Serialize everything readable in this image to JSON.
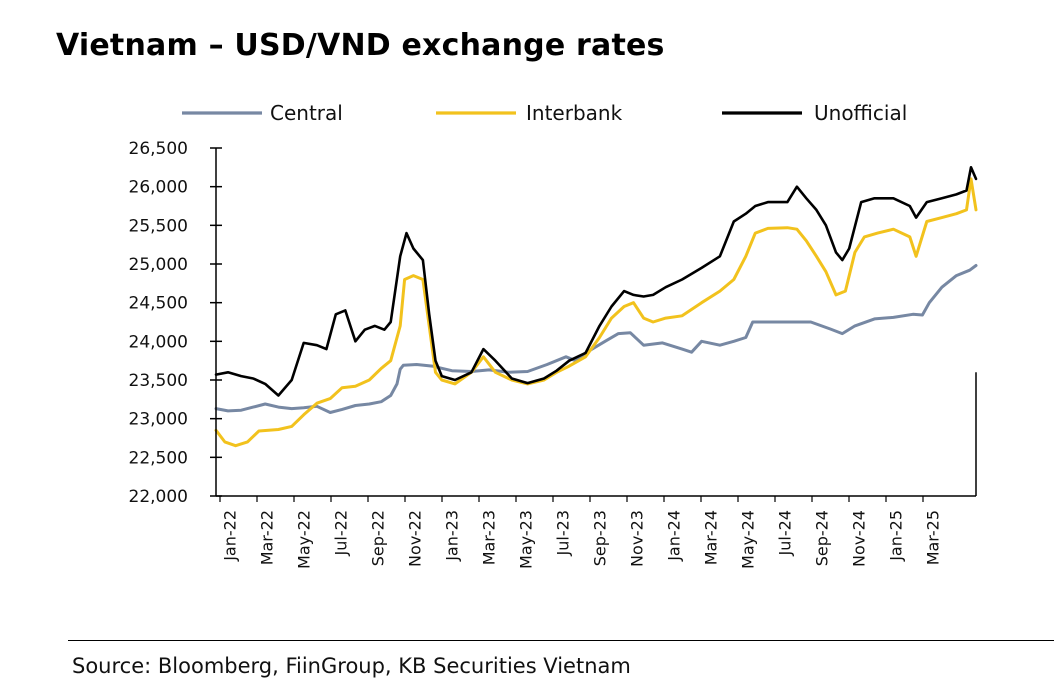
{
  "title": "Vietnam – USD/VND exchange rates",
  "source": "Source: Bloomberg, FiinGroup, KB Securities Vietnam",
  "chart_data": {
    "type": "line",
    "title": "Vietnam – USD/VND exchange rates",
    "xlabel": "",
    "ylabel": "",
    "ylim": [
      22000,
      26500
    ],
    "yticks": [
      22000,
      22500,
      23000,
      23500,
      24000,
      24500,
      25000,
      25500,
      26000,
      26500
    ],
    "ytick_labels": [
      "22,000",
      "22,500",
      "23,000",
      "23,500",
      "24,000",
      "24,500",
      "25,000",
      "25,500",
      "26,000",
      "26,500"
    ],
    "xticks": [
      "Jan-22",
      "Mar-22",
      "May-22",
      "Jul-22",
      "Sep-22",
      "Nov-22",
      "Jan-23",
      "Mar-23",
      "May-23",
      "Jul-23",
      "Sep-23",
      "Nov-23",
      "Jan-24",
      "Mar-24",
      "May-24",
      "Jul-24",
      "Sep-24",
      "Nov-24",
      "Jan-25",
      "Mar-25"
    ],
    "x_range": [
      "2022-01-01",
      "2025-04-20"
    ],
    "grid": false,
    "legend": "top",
    "series": [
      {
        "name": "Central",
        "color": "#7788A3",
        "points": [
          [
            "2022-01-01",
            23130
          ],
          [
            "2022-01-20",
            23100
          ],
          [
            "2022-02-10",
            23110
          ],
          [
            "2022-03-01",
            23150
          ],
          [
            "2022-03-20",
            23190
          ],
          [
            "2022-04-10",
            23150
          ],
          [
            "2022-05-01",
            23130
          ],
          [
            "2022-05-20",
            23140
          ],
          [
            "2022-06-10",
            23160
          ],
          [
            "2022-07-01",
            23080
          ],
          [
            "2022-07-20",
            23120
          ],
          [
            "2022-08-10",
            23170
          ],
          [
            "2022-09-01",
            23190
          ],
          [
            "2022-09-20",
            23220
          ],
          [
            "2022-10-05",
            23300
          ],
          [
            "2022-10-15",
            23450
          ],
          [
            "2022-10-20",
            23640
          ],
          [
            "2022-10-25",
            23690
          ],
          [
            "2022-11-15",
            23700
          ],
          [
            "2022-12-10",
            23680
          ],
          [
            "2023-01-10",
            23620
          ],
          [
            "2023-02-10",
            23610
          ],
          [
            "2023-03-10",
            23630
          ],
          [
            "2023-04-10",
            23600
          ],
          [
            "2023-05-10",
            23610
          ],
          [
            "2023-06-10",
            23700
          ],
          [
            "2023-07-10",
            23800
          ],
          [
            "2023-07-25",
            23750
          ],
          [
            "2023-08-10",
            23850
          ],
          [
            "2023-09-10",
            24000
          ],
          [
            "2023-10-01",
            24100
          ],
          [
            "2023-10-20",
            24110
          ],
          [
            "2023-11-10",
            23950
          ],
          [
            "2023-12-10",
            23980
          ],
          [
            "2024-01-10",
            23900
          ],
          [
            "2024-01-25",
            23860
          ],
          [
            "2024-02-10",
            24000
          ],
          [
            "2024-03-10",
            23950
          ],
          [
            "2024-04-01",
            24000
          ],
          [
            "2024-04-20",
            24050
          ],
          [
            "2024-05-01",
            24250
          ],
          [
            "2024-06-01",
            24250
          ],
          [
            "2024-07-01",
            24250
          ],
          [
            "2024-08-01",
            24250
          ],
          [
            "2024-09-01",
            24160
          ],
          [
            "2024-09-20",
            24100
          ],
          [
            "2024-10-10",
            24200
          ],
          [
            "2024-11-10",
            24290
          ],
          [
            "2024-12-10",
            24310
          ],
          [
            "2025-01-10",
            24350
          ],
          [
            "2025-01-25",
            24340
          ],
          [
            "2025-02-05",
            24500
          ],
          [
            "2025-02-25",
            24700
          ],
          [
            "2025-03-20",
            24850
          ],
          [
            "2025-04-10",
            24920
          ],
          [
            "2025-04-20",
            24980
          ]
        ]
      },
      {
        "name": "Interbank",
        "color": "#F2C21D",
        "points": [
          [
            "2022-01-01",
            22850
          ],
          [
            "2022-01-15",
            22700
          ],
          [
            "2022-02-01",
            22650
          ],
          [
            "2022-02-20",
            22700
          ],
          [
            "2022-03-10",
            22840
          ],
          [
            "2022-04-10",
            22860
          ],
          [
            "2022-05-01",
            22900
          ],
          [
            "2022-05-20",
            23050
          ],
          [
            "2022-06-10",
            23200
          ],
          [
            "2022-07-01",
            23260
          ],
          [
            "2022-07-20",
            23400
          ],
          [
            "2022-08-10",
            23420
          ],
          [
            "2022-09-01",
            23500
          ],
          [
            "2022-09-20",
            23650
          ],
          [
            "2022-10-05",
            23750
          ],
          [
            "2022-10-20",
            24200
          ],
          [
            "2022-10-27",
            24800
          ],
          [
            "2022-11-10",
            24850
          ],
          [
            "2022-11-25",
            24800
          ],
          [
            "2022-12-05",
            24200
          ],
          [
            "2022-12-15",
            23600
          ],
          [
            "2022-12-25",
            23500
          ],
          [
            "2023-01-15",
            23450
          ],
          [
            "2023-02-10",
            23600
          ],
          [
            "2023-03-01",
            23800
          ],
          [
            "2023-03-20",
            23600
          ],
          [
            "2023-04-15",
            23500
          ],
          [
            "2023-05-10",
            23450
          ],
          [
            "2023-06-05",
            23500
          ],
          [
            "2023-06-25",
            23600
          ],
          [
            "2023-07-15",
            23680
          ],
          [
            "2023-08-10",
            23800
          ],
          [
            "2023-09-01",
            24050
          ],
          [
            "2023-09-20",
            24300
          ],
          [
            "2023-10-10",
            24450
          ],
          [
            "2023-10-25",
            24500
          ],
          [
            "2023-11-10",
            24300
          ],
          [
            "2023-11-25",
            24250
          ],
          [
            "2023-12-15",
            24300
          ],
          [
            "2024-01-10",
            24330
          ],
          [
            "2024-02-10",
            24500
          ],
          [
            "2024-03-10",
            24650
          ],
          [
            "2024-04-01",
            24800
          ],
          [
            "2024-04-20",
            25100
          ],
          [
            "2024-05-05",
            25400
          ],
          [
            "2024-05-25",
            25460
          ],
          [
            "2024-06-25",
            25470
          ],
          [
            "2024-07-10",
            25450
          ],
          [
            "2024-07-25",
            25300
          ],
          [
            "2024-08-10",
            25100
          ],
          [
            "2024-08-25",
            24900
          ],
          [
            "2024-09-10",
            24600
          ],
          [
            "2024-09-25",
            24650
          ],
          [
            "2024-10-10",
            25150
          ],
          [
            "2024-10-25",
            25350
          ],
          [
            "2024-11-15",
            25400
          ],
          [
            "2024-12-10",
            25450
          ],
          [
            "2025-01-05",
            25350
          ],
          [
            "2025-01-15",
            25100
          ],
          [
            "2025-02-01",
            25550
          ],
          [
            "2025-02-25",
            25600
          ],
          [
            "2025-03-20",
            25650
          ],
          [
            "2025-04-05",
            25700
          ],
          [
            "2025-04-12",
            26100
          ],
          [
            "2025-04-20",
            25700
          ]
        ]
      },
      {
        "name": "Unofficial",
        "color": "#000000",
        "points": [
          [
            "2022-01-01",
            23570
          ],
          [
            "2022-01-20",
            23600
          ],
          [
            "2022-02-10",
            23550
          ],
          [
            "2022-03-01",
            23520
          ],
          [
            "2022-03-20",
            23450
          ],
          [
            "2022-04-10",
            23300
          ],
          [
            "2022-05-01",
            23500
          ],
          [
            "2022-05-20",
            23980
          ],
          [
            "2022-06-10",
            23950
          ],
          [
            "2022-06-25",
            23900
          ],
          [
            "2022-07-10",
            24350
          ],
          [
            "2022-07-25",
            24400
          ],
          [
            "2022-08-10",
            24000
          ],
          [
            "2022-08-25",
            24150
          ],
          [
            "2022-09-10",
            24200
          ],
          [
            "2022-09-25",
            24150
          ],
          [
            "2022-10-05",
            24250
          ],
          [
            "2022-10-20",
            25100
          ],
          [
            "2022-10-30",
            25400
          ],
          [
            "2022-11-10",
            25200
          ],
          [
            "2022-11-25",
            25050
          ],
          [
            "2022-12-05",
            24350
          ],
          [
            "2022-12-15",
            23750
          ],
          [
            "2022-12-25",
            23550
          ],
          [
            "2023-01-15",
            23500
          ],
          [
            "2023-02-10",
            23600
          ],
          [
            "2023-03-01",
            23900
          ],
          [
            "2023-03-20",
            23750
          ],
          [
            "2023-04-15",
            23520
          ],
          [
            "2023-05-10",
            23460
          ],
          [
            "2023-06-05",
            23520
          ],
          [
            "2023-06-25",
            23620
          ],
          [
            "2023-07-15",
            23750
          ],
          [
            "2023-08-10",
            23850
          ],
          [
            "2023-09-01",
            24200
          ],
          [
            "2023-09-20",
            24450
          ],
          [
            "2023-10-10",
            24650
          ],
          [
            "2023-10-25",
            24600
          ],
          [
            "2023-11-10",
            24580
          ],
          [
            "2023-11-25",
            24600
          ],
          [
            "2023-12-15",
            24700
          ],
          [
            "2024-01-10",
            24800
          ],
          [
            "2024-02-10",
            24950
          ],
          [
            "2024-03-10",
            25100
          ],
          [
            "2024-04-01",
            25550
          ],
          [
            "2024-04-20",
            25650
          ],
          [
            "2024-05-05",
            25750
          ],
          [
            "2024-05-25",
            25800
          ],
          [
            "2024-06-25",
            25800
          ],
          [
            "2024-07-10",
            26000
          ],
          [
            "2024-07-25",
            25850
          ],
          [
            "2024-08-10",
            25700
          ],
          [
            "2024-08-25",
            25500
          ],
          [
            "2024-09-10",
            25150
          ],
          [
            "2024-09-20",
            25050
          ],
          [
            "2024-10-01",
            25200
          ],
          [
            "2024-10-20",
            25800
          ],
          [
            "2024-11-10",
            25850
          ],
          [
            "2024-12-10",
            25850
          ],
          [
            "2025-01-05",
            25750
          ],
          [
            "2025-01-15",
            25600
          ],
          [
            "2025-02-01",
            25800
          ],
          [
            "2025-02-25",
            25850
          ],
          [
            "2025-03-20",
            25900
          ],
          [
            "2025-04-05",
            25950
          ],
          [
            "2025-04-12",
            26250
          ],
          [
            "2025-04-20",
            26100
          ]
        ]
      }
    ]
  }
}
